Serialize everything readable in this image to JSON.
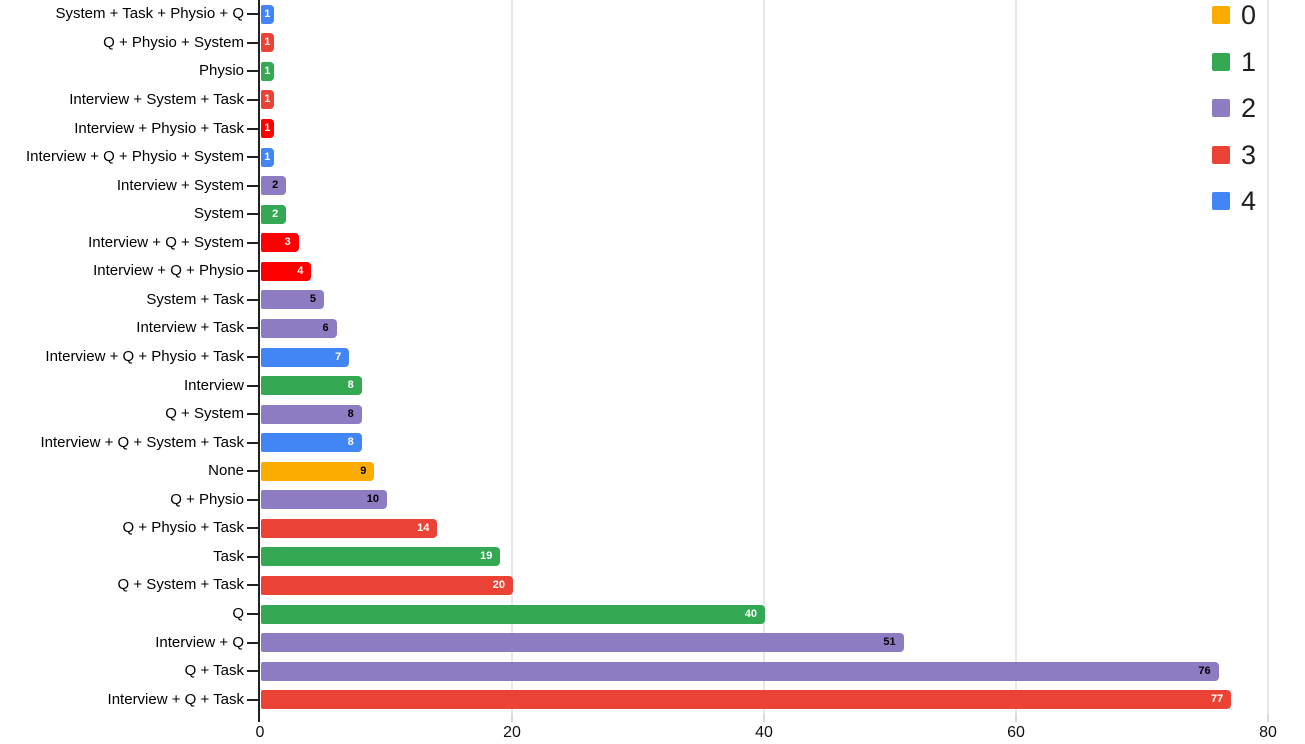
{
  "chart_data": {
    "type": "bar",
    "orientation": "horizontal",
    "title": "",
    "xlabel": "",
    "ylabel": "",
    "xlim": [
      0,
      80
    ],
    "xticks": [
      "0",
      "20",
      "40",
      "60",
      "80"
    ],
    "xtick_values": [
      0,
      20,
      40,
      60,
      80
    ],
    "grid": true,
    "legend": {
      "position": "top-right",
      "entries": [
        {
          "label": "0",
          "color": "#F9AB00"
        },
        {
          "label": "1",
          "color": "#34A853"
        },
        {
          "label": "2",
          "color": "#8E7CC3"
        },
        {
          "label": "3",
          "color": "#EA4335"
        },
        {
          "label": "4",
          "color": "#4285F4"
        }
      ]
    },
    "bars": [
      {
        "category": "System + Task + Physio + Q",
        "value": 1,
        "group": "4",
        "color": "#4285F4",
        "value_label": "1",
        "value_label_color": "#FFFFFF"
      },
      {
        "category": "Q + Physio + System",
        "value": 1,
        "group": "3",
        "color": "#EA4335",
        "value_label": "1",
        "value_label_color": "#FFFFFF"
      },
      {
        "category": "Physio",
        "value": 1,
        "group": "1",
        "color": "#34A853",
        "value_label": "1",
        "value_label_color": "#FFFFFF"
      },
      {
        "category": "Interview + System + Task",
        "value": 1,
        "group": "3",
        "color": "#EA4335",
        "value_label": "1",
        "value_label_color": "#FFFFFF"
      },
      {
        "category": "Interview + Physio + Task",
        "value": 1,
        "group": "3",
        "color": "#FF0000",
        "value_label": "1",
        "value_label_color": "#FFFFFF"
      },
      {
        "category": "Interview + Q + Physio + System",
        "value": 1,
        "group": "4",
        "color": "#4285F4",
        "value_label": "1",
        "value_label_color": "#FFFFFF"
      },
      {
        "category": "Interview + System",
        "value": 2,
        "group": "2",
        "color": "#8E7CC3",
        "value_label": "2",
        "value_label_color": "#000000"
      },
      {
        "category": "System",
        "value": 2,
        "group": "1",
        "color": "#34A853",
        "value_label": "2",
        "value_label_color": "#FFFFFF"
      },
      {
        "category": "Interview + Q + System",
        "value": 3,
        "group": "3",
        "color": "#FF0000",
        "value_label": "3",
        "value_label_color": "#FFFFFF"
      },
      {
        "category": "Interview + Q + Physio",
        "value": 4,
        "group": "3",
        "color": "#FF0000",
        "value_label": "4",
        "value_label_color": "#FFFFFF"
      },
      {
        "category": "System + Task",
        "value": 5,
        "group": "2",
        "color": "#8E7CC3",
        "value_label": "5",
        "value_label_color": "#000000"
      },
      {
        "category": "Interview + Task",
        "value": 6,
        "group": "2",
        "color": "#8E7CC3",
        "value_label": "6",
        "value_label_color": "#000000"
      },
      {
        "category": "Interview + Q + Physio + Task",
        "value": 7,
        "group": "4",
        "color": "#4285F4",
        "value_label": "7",
        "value_label_color": "#FFFFFF"
      },
      {
        "category": "Interview",
        "value": 8,
        "group": "1",
        "color": "#34A853",
        "value_label": "8",
        "value_label_color": "#FFFFFF"
      },
      {
        "category": "Q + System",
        "value": 8,
        "group": "2",
        "color": "#8E7CC3",
        "value_label": "8",
        "value_label_color": "#000000"
      },
      {
        "category": "Interview + Q + System + Task",
        "value": 8,
        "group": "4",
        "color": "#4285F4",
        "value_label": "8",
        "value_label_color": "#FFFFFF"
      },
      {
        "category": "None",
        "value": 9,
        "group": "0",
        "color": "#F9AB00",
        "value_label": "9",
        "value_label_color": "#000000"
      },
      {
        "category": "Q + Physio",
        "value": 10,
        "group": "2",
        "color": "#8E7CC3",
        "value_label": "10",
        "value_label_color": "#000000"
      },
      {
        "category": "Q + Physio + Task",
        "value": 14,
        "group": "3",
        "color": "#EA4335",
        "value_label": "14",
        "value_label_color": "#FFFFFF"
      },
      {
        "category": "Task",
        "value": 19,
        "group": "1",
        "color": "#34A853",
        "value_label": "19",
        "value_label_color": "#FFFFFF"
      },
      {
        "category": "Q + System + Task",
        "value": 20,
        "group": "3",
        "color": "#EA4335",
        "value_label": "20",
        "value_label_color": "#FFFFFF"
      },
      {
        "category": "Q",
        "value": 40,
        "group": "1",
        "color": "#34A853",
        "value_label": "40",
        "value_label_color": "#FFFFFF"
      },
      {
        "category": "Interview + Q",
        "value": 51,
        "group": "2",
        "color": "#8E7CC3",
        "value_label": "51",
        "value_label_color": "#000000"
      },
      {
        "category": "Q + Task",
        "value": 76,
        "group": "2",
        "color": "#8E7CC3",
        "value_label": "76",
        "value_label_color": "#000000"
      },
      {
        "category": "Interview + Q + Task",
        "value": 77,
        "group": "3",
        "color": "#EA4335",
        "value_label": "77",
        "value_label_color": "#FFFFFF"
      }
    ]
  },
  "colors": {
    "background": "#FFFFFF",
    "gridline": "#E8E8E8",
    "axis": "#212121",
    "bottom_tick": "#D9D9D9",
    "category_text": "#000000",
    "tick_text": "#111111",
    "legend_text": "#1F1F1F"
  }
}
